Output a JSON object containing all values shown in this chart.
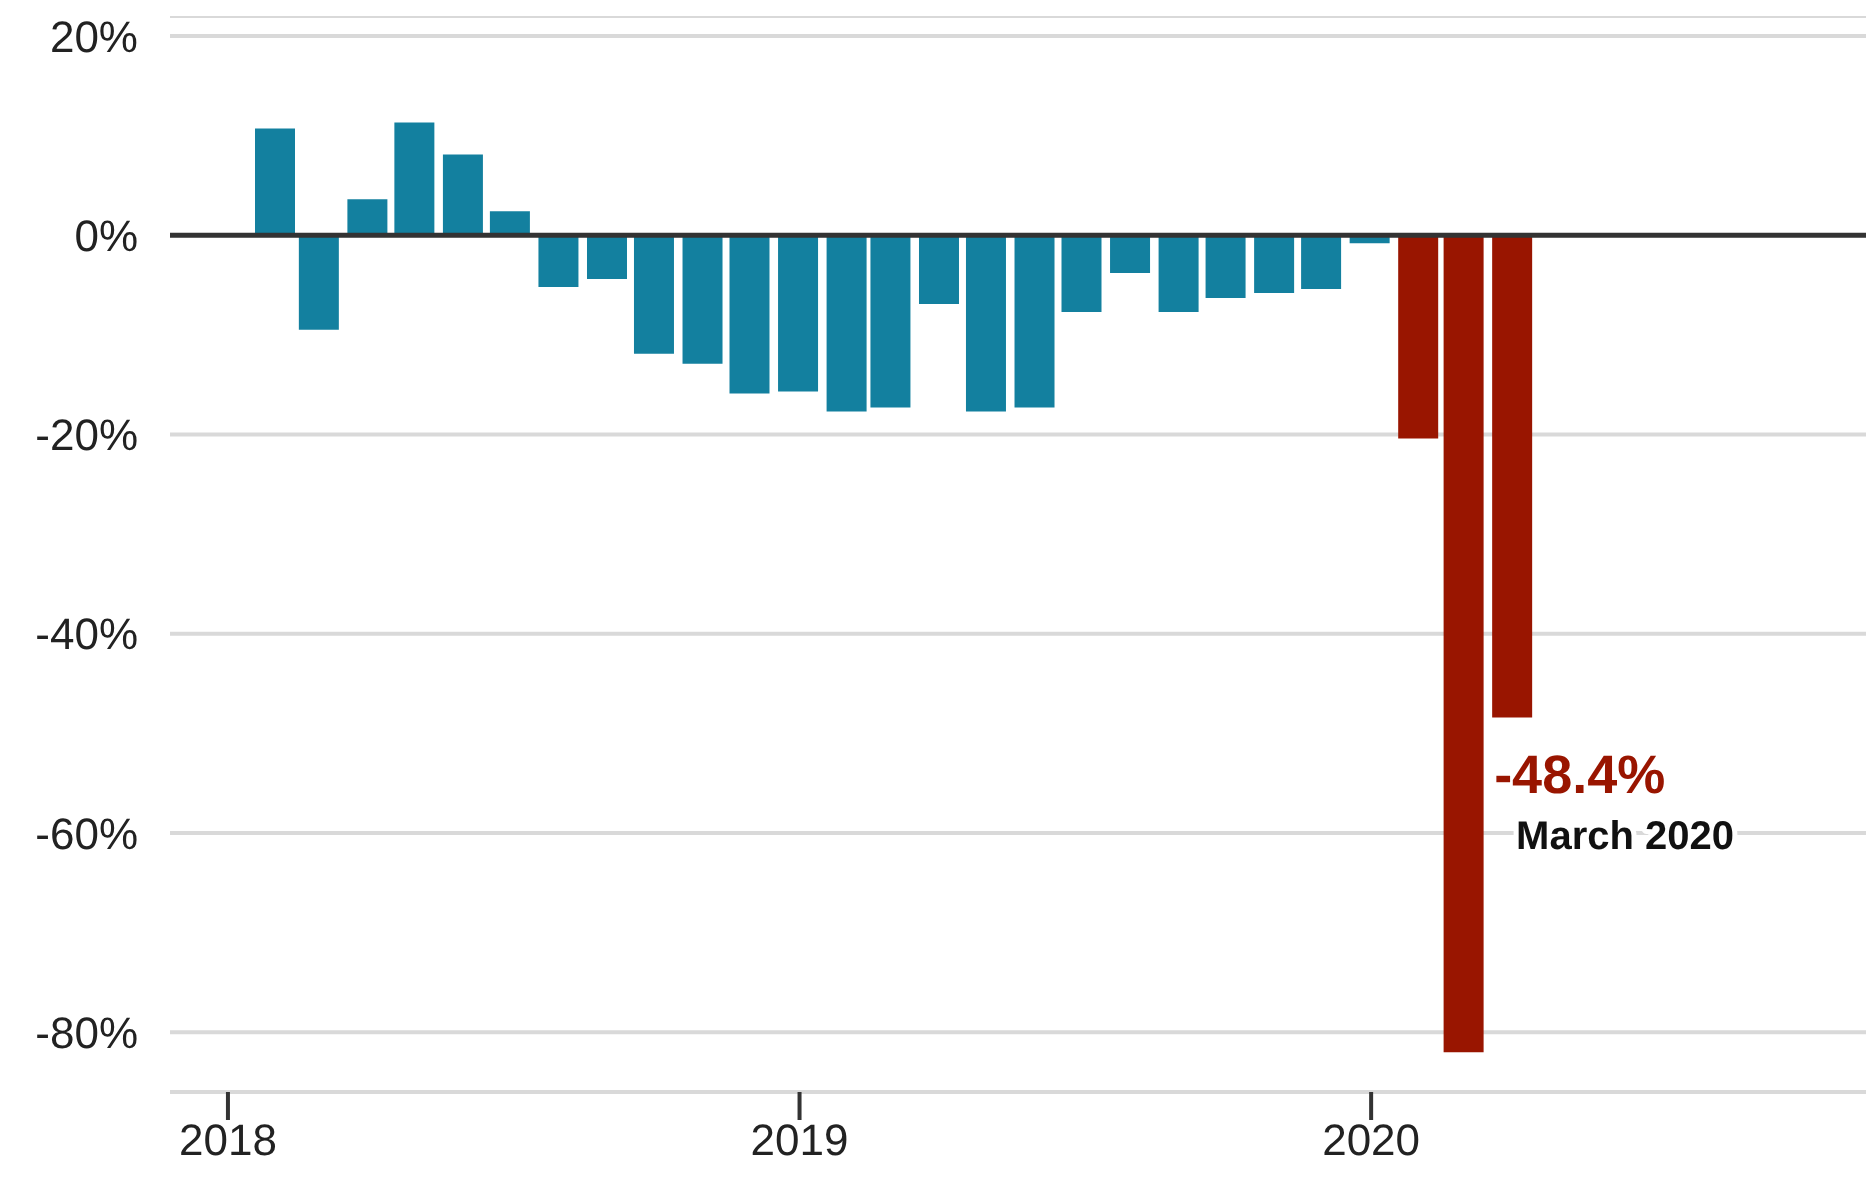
{
  "chart_data": {
    "type": "bar",
    "x": [
      "2018-01-31",
      "2018-02-28",
      "2018-03-31",
      "2018-04-30",
      "2018-05-31",
      "2018-06-30",
      "2018-07-31",
      "2018-08-31",
      "2018-09-30",
      "2018-10-31",
      "2018-11-30",
      "2018-12-31",
      "2019-01-31",
      "2019-02-28",
      "2019-03-31",
      "2019-04-30",
      "2019-05-31",
      "2019-06-30",
      "2019-07-31",
      "2019-08-31",
      "2019-09-30",
      "2019-10-31",
      "2019-11-30",
      "2019-12-31",
      "2020-01-31",
      "2020-02-29",
      "2020-03-31"
    ],
    "values": [
      10.7,
      -9.5,
      3.6,
      11.3,
      8.1,
      2.4,
      -5.2,
      -4.4,
      -11.9,
      -12.9,
      -15.9,
      -15.7,
      -17.7,
      -17.3,
      -6.9,
      -17.7,
      -17.3,
      -7.7,
      -3.8,
      -7.7,
      -6.3,
      -5.8,
      -5.4,
      -0.8,
      -20.4,
      -82,
      -48.4
    ],
    "colors": [
      "#13809f",
      "#13809f",
      "#13809f",
      "#13809f",
      "#13809f",
      "#13809f",
      "#13809f",
      "#13809f",
      "#13809f",
      "#13809f",
      "#13809f",
      "#13809f",
      "#13809f",
      "#13809f",
      "#13809f",
      "#13809f",
      "#13809f",
      "#13809f",
      "#13809f",
      "#13809f",
      "#13809f",
      "#13809f",
      "#13809f",
      "#13809f",
      "#991500",
      "#991500",
      "#991500"
    ],
    "value_labels": [
      null,
      null,
      null,
      null,
      null,
      null,
      null,
      null,
      null,
      null,
      null,
      null,
      null,
      null,
      null,
      null,
      null,
      null,
      null,
      null,
      null,
      null,
      null,
      null,
      null,
      null,
      "-48.4%"
    ],
    "annotations": [
      {
        "text": "March 2020",
        "x": "2020-03-31",
        "y": -48.4
      }
    ],
    "xlim": [
      "2017-11-25",
      "2020-11-12"
    ],
    "xticks": [
      {
        "value": "2018-01-01",
        "label": "2018"
      },
      {
        "value": "2019-01-01",
        "label": "2019"
      },
      {
        "value": "2020-01-01",
        "label": "2020"
      }
    ],
    "ylim": [
      -86,
      22
    ],
    "yticks": [
      {
        "value": 20,
        "label": "20%"
      },
      {
        "value": 0,
        "label": "0%"
      },
      {
        "value": -20,
        "label": "-20%"
      },
      {
        "value": -40,
        "label": "-40%"
      },
      {
        "value": -60,
        "label": "-60%"
      },
      {
        "value": -80,
        "label": "-80%"
      }
    ],
    "ref_lines": [
      {
        "axis": "y",
        "value": 0,
        "color": "#333333"
      }
    ],
    "grid": "y"
  }
}
